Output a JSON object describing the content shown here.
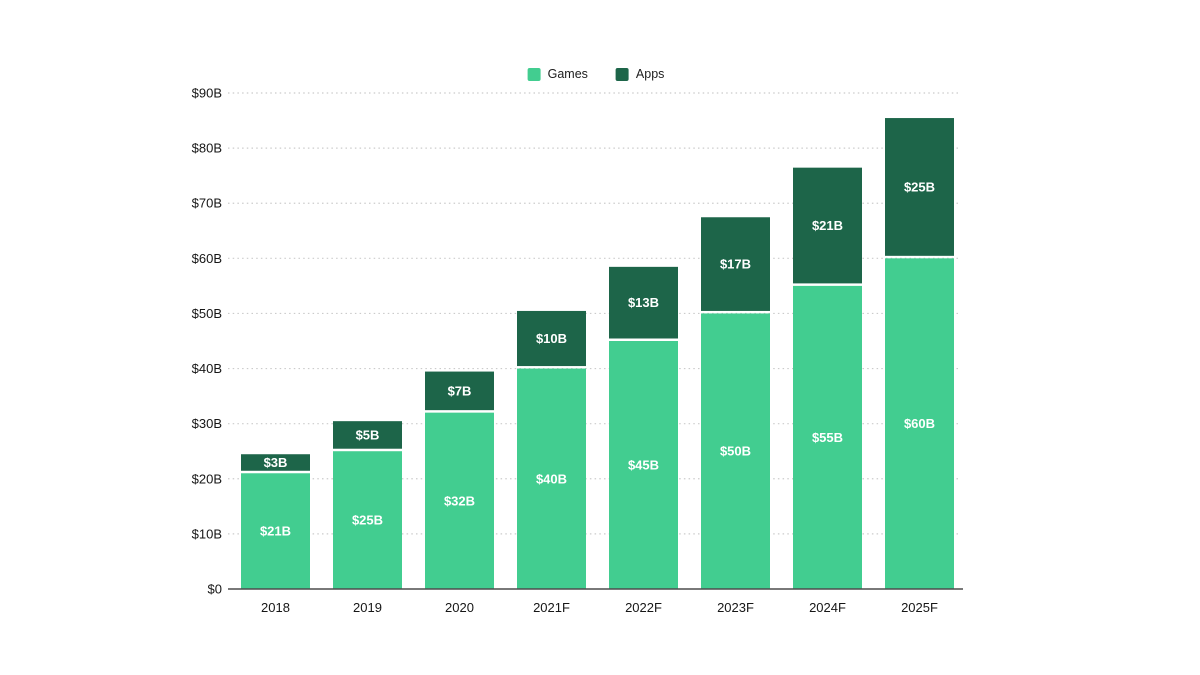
{
  "page": {
    "background": "#ffffff"
  },
  "chart_data": {
    "type": "bar",
    "stacked": true,
    "title": "",
    "categories": [
      "2018",
      "2019",
      "2020",
      "2021F",
      "2022F",
      "2023F",
      "2024F",
      "2025F"
    ],
    "series": [
      {
        "name": "Games",
        "color": "#42CD90",
        "values": [
          21,
          25,
          32,
          40,
          45,
          50,
          55,
          60
        ],
        "value_labels": [
          "$21B",
          "$25B",
          "$32B",
          "$40B",
          "$45B",
          "$50B",
          "$55B",
          "$60B"
        ]
      },
      {
        "name": "Apps",
        "color": "#1D6549",
        "values": [
          3,
          5,
          7,
          10,
          13,
          17,
          21,
          25
        ],
        "value_labels": [
          "$3B",
          "$5B",
          "$7B",
          "$10B",
          "$13B",
          "$17B",
          "$21B",
          "$25B"
        ]
      }
    ],
    "y_axis": {
      "min": 0,
      "max": 90,
      "tick_step": 10,
      "tick_labels": [
        "$0",
        "$10B",
        "$20B",
        "$30B",
        "$40B",
        "$50B",
        "$60B",
        "$70B",
        "$80B",
        "$90B"
      ]
    },
    "x_axis": {
      "tick_labels": [
        "2018",
        "2019",
        "2020",
        "2021F",
        "2022F",
        "2023F",
        "2024F",
        "2025F"
      ]
    },
    "legend_position": "top-center",
    "grid": "horizontal-dotted",
    "value_label_color": "#ffffff",
    "axis_text_color": "#161616",
    "gridline_color": "#cbcbcb",
    "baseline_color": "#4d4d4d"
  }
}
